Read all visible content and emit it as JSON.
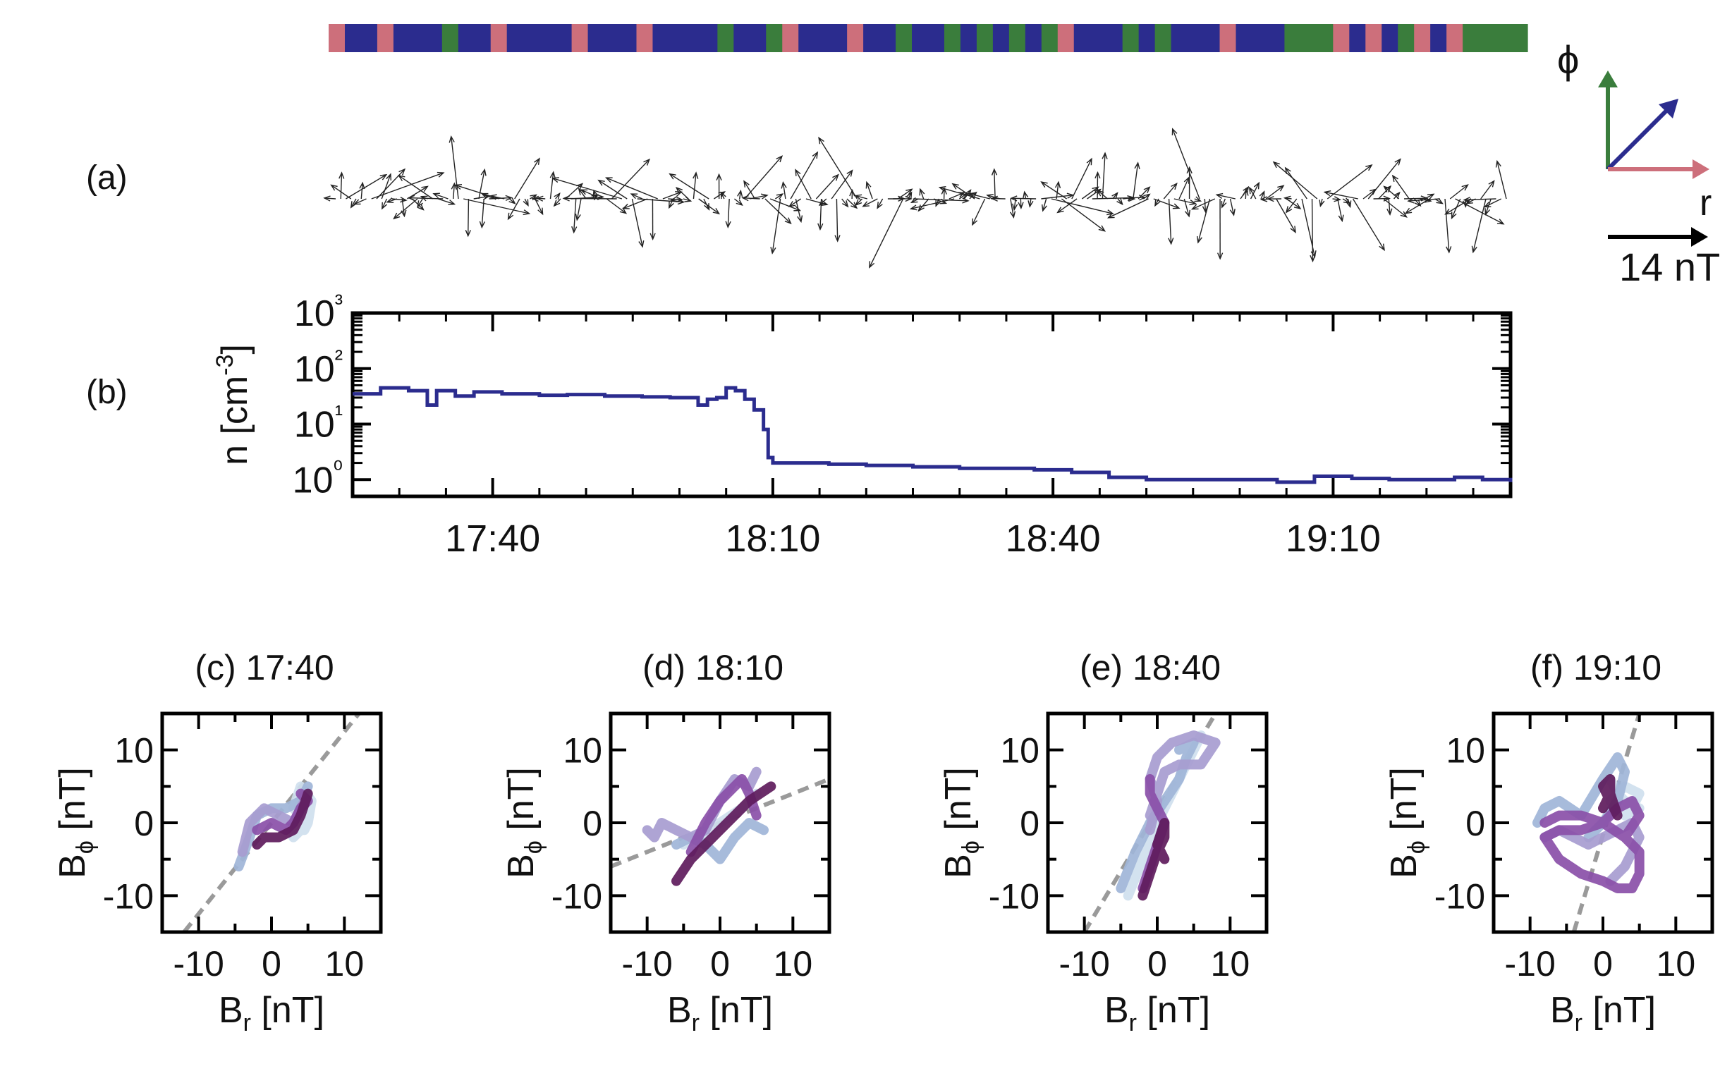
{
  "colors": {
    "pink": "#cd6f7b",
    "blue": "#2b2c8e",
    "green": "#3a7d3c",
    "line": "#2b2c8e",
    "dash": "#9a9a9a",
    "purple_dark": "#5e1b5c",
    "purple_mid": "#8a4fa8",
    "purple_light": "#a79cd0",
    "blue_light": "#9fb5d8",
    "blue_pale": "#cfe0ee"
  },
  "legend": {
    "phi_label": "ϕ",
    "r_label": "r",
    "scale_label": "14 nT"
  },
  "chart_data": [
    {
      "id": "a",
      "type": "other",
      "panel_label": "(a)",
      "color_bar_sequence": [
        "pink",
        "blue",
        "pink",
        "blue",
        "green",
        "blue",
        "pink",
        "blue",
        "pink",
        "blue",
        "pink",
        "blue",
        "green",
        "blue",
        "green",
        "pink",
        "blue",
        "pink",
        "blue",
        "green",
        "blue",
        "green",
        "blue",
        "green",
        "blue",
        "green",
        "blue",
        "green",
        "pink",
        "blue",
        "green",
        "blue",
        "green",
        "blue",
        "pink",
        "blue",
        "green",
        "pink",
        "blue",
        "pink",
        "blue",
        "green",
        "pink",
        "blue",
        "pink",
        "green"
      ]
    },
    {
      "id": "b",
      "type": "line",
      "panel_label": "(b)",
      "ylabel": "n [cm⁻³]",
      "yscale": "log",
      "ylim": [
        0.5,
        1000
      ],
      "xlim_minutes": [
        1045,
        1169
      ],
      "x_ticks": [
        1060,
        1090,
        1120,
        1150
      ],
      "x_tick_labels": [
        "17:40",
        "18:10",
        "18:40",
        "19:10"
      ],
      "y_ticks": [
        1,
        10,
        100,
        1000
      ],
      "y_tick_labels": [
        "10⁰",
        "10¹",
        "10²",
        "10³"
      ],
      "series": [
        {
          "x": [
            1045,
            1048,
            1051,
            1053,
            1054,
            1056,
            1058,
            1061,
            1065,
            1068,
            1072,
            1076,
            1079,
            1082,
            1083,
            1084,
            1085,
            1086,
            1087,
            1088,
            1089,
            1089.5,
            1090,
            1092,
            1096,
            1100,
            1105,
            1110,
            1114,
            1118,
            1122,
            1126,
            1130,
            1134,
            1138,
            1141,
            1144,
            1148,
            1152,
            1156,
            1160,
            1163,
            1166,
            1169
          ],
          "y": [
            35,
            45,
            40,
            22,
            40,
            32,
            38,
            35,
            33,
            34,
            32,
            31,
            30,
            22,
            28,
            30,
            45,
            40,
            28,
            18,
            8,
            2.5,
            2.0,
            2.0,
            1.9,
            1.8,
            1.7,
            1.6,
            1.6,
            1.5,
            1.35,
            1.1,
            1.0,
            1.0,
            1.0,
            1.0,
            0.9,
            1.15,
            1.05,
            1.0,
            1.0,
            1.1,
            1.0,
            0.9
          ]
        }
      ]
    },
    {
      "id": "c",
      "type": "line",
      "title": "(c) 17:40",
      "xlabel": "B_r [nT]",
      "ylabel": "B_ϕ [nT]",
      "xlim": [
        -15,
        15
      ],
      "ylim": [
        -15,
        15
      ],
      "ticks": [
        -10,
        0,
        10
      ],
      "dashed_line": [
        [
          -12,
          -15
        ],
        [
          12,
          15
        ]
      ],
      "series": [
        {
          "color": "blue_pale",
          "x": [
            3,
            5,
            5.5,
            4,
            3,
            5,
            4.5
          ],
          "y": [
            -2,
            0,
            3,
            5,
            2,
            0,
            -1
          ]
        },
        {
          "color": "blue_light",
          "x": [
            -4.5,
            -3,
            -2,
            0,
            2,
            4,
            5
          ],
          "y": [
            -6,
            -2,
            1,
            2,
            2,
            3,
            5
          ]
        },
        {
          "color": "purple_light",
          "x": [
            -4,
            -3,
            -1,
            1,
            3,
            4.5
          ],
          "y": [
            -4,
            0,
            2,
            1,
            0,
            3
          ]
        },
        {
          "color": "purple_mid",
          "x": [
            -2,
            0,
            2,
            3,
            4,
            5,
            4
          ],
          "y": [
            -1,
            0,
            -1,
            0,
            2,
            3,
            4
          ]
        },
        {
          "color": "purple_dark",
          "x": [
            -2,
            -1,
            1,
            3,
            4,
            5
          ],
          "y": [
            -3,
            -2,
            -2,
            -1,
            1,
            4
          ]
        }
      ]
    },
    {
      "id": "d",
      "type": "line",
      "title": "(d) 18:10",
      "xlabel": "B_r [nT]",
      "ylabel": "B_ϕ [nT]",
      "xlim": [
        -15,
        15
      ],
      "ylim": [
        -15,
        15
      ],
      "ticks": [
        -10,
        0,
        10
      ],
      "dashed_line": [
        [
          -15,
          -6
        ],
        [
          15,
          6
        ]
      ],
      "series": [
        {
          "color": "blue_pale",
          "x": [
            -5,
            -3,
            0,
            3,
            5
          ],
          "y": [
            -3,
            -2,
            0,
            2,
            4
          ]
        },
        {
          "color": "blue_light",
          "x": [
            -6,
            -4,
            -2,
            0,
            2,
            4,
            6
          ],
          "y": [
            -3,
            -2,
            -3,
            -5,
            -2,
            0,
            -1
          ]
        },
        {
          "color": "purple_light",
          "x": [
            -10,
            -9,
            -8,
            -6,
            -4,
            -2,
            0,
            2,
            4,
            5
          ],
          "y": [
            -1,
            -2,
            0,
            -1,
            -2,
            -1,
            3,
            6,
            5,
            7
          ]
        },
        {
          "color": "purple_mid",
          "x": [
            -4,
            -2,
            0,
            2,
            3,
            4,
            5
          ],
          "y": [
            -4,
            0,
            3,
            5,
            6,
            4,
            1
          ]
        },
        {
          "color": "purple_dark",
          "x": [
            -6,
            -4,
            -2,
            0,
            2,
            4,
            7
          ],
          "y": [
            -8,
            -5,
            -3,
            -1,
            1,
            3,
            5
          ]
        }
      ]
    },
    {
      "id": "e",
      "type": "line",
      "title": "(e) 18:40",
      "xlabel": "B_r [nT]",
      "ylabel": "B_ϕ [nT]",
      "xlim": [
        -15,
        15
      ],
      "ylim": [
        -15,
        15
      ],
      "ticks": [
        -10,
        0,
        10
      ],
      "dashed_line": [
        [
          -10,
          -15
        ],
        [
          8,
          15
        ]
      ],
      "series": [
        {
          "color": "blue_pale",
          "x": [
            -4,
            -2,
            0,
            2,
            4,
            6,
            5
          ],
          "y": [
            -10,
            -5,
            0,
            4,
            8,
            12,
            10
          ]
        },
        {
          "color": "blue_light",
          "x": [
            -5,
            -3,
            -1,
            1,
            3,
            4,
            5,
            3
          ],
          "y": [
            -9,
            -4,
            0,
            3,
            6,
            9,
            11,
            10
          ]
        },
        {
          "color": "purple_light",
          "x": [
            -1,
            0,
            -1,
            0,
            2,
            5,
            8,
            6,
            3,
            1,
            0,
            -1
          ],
          "y": [
            -1,
            3,
            6,
            9,
            11,
            12,
            11,
            8,
            8,
            7,
            4,
            1
          ]
        },
        {
          "color": "purple_mid",
          "x": [
            -2,
            -1,
            0,
            1,
            0,
            -1,
            -1
          ],
          "y": [
            -9,
            -6,
            -3,
            0,
            2,
            4,
            6
          ]
        },
        {
          "color": "purple_dark",
          "x": [
            -2,
            -1,
            0,
            1,
            1,
            0,
            1
          ],
          "y": [
            -10,
            -7,
            -4,
            -2,
            0,
            -3,
            -5
          ]
        }
      ]
    },
    {
      "id": "f",
      "type": "line",
      "title": "(f) 19:10",
      "xlabel": "B_r [nT]",
      "ylabel": "B_ϕ [nT]",
      "xlim": [
        -15,
        15
      ],
      "ylim": [
        -15,
        15
      ],
      "ticks": [
        -10,
        0,
        10
      ],
      "dashed_line": [
        [
          -4,
          -15
        ],
        [
          5,
          15
        ]
      ],
      "series": [
        {
          "color": "blue_pale",
          "x": [
            1,
            2,
            4,
            5,
            3,
            1,
            3,
            5
          ],
          "y": [
            6,
            4,
            2,
            4,
            5,
            3,
            1,
            2
          ]
        },
        {
          "color": "blue_light",
          "x": [
            -9,
            -8,
            -6,
            -3,
            0,
            2,
            3,
            2,
            0,
            -2
          ],
          "y": [
            0,
            2,
            3,
            1,
            6,
            9,
            7,
            3,
            0,
            -2
          ]
        },
        {
          "color": "purple_light",
          "x": [
            -8,
            -6,
            -4,
            -2,
            0,
            2,
            4,
            5,
            3,
            1
          ],
          "y": [
            -2,
            -1,
            -2,
            -3,
            -2,
            -1,
            0,
            -2,
            -6,
            -8
          ]
        },
        {
          "color": "purple_mid",
          "x": [
            -8,
            -6,
            -3,
            0,
            3,
            5,
            5,
            4,
            2,
            0,
            -3,
            -6,
            -8,
            -6,
            -3,
            0,
            2,
            4,
            5,
            3
          ],
          "y": [
            0,
            1,
            1,
            0,
            -2,
            -4,
            -7,
            -9,
            -9,
            -8,
            -7,
            -5,
            -2,
            -1,
            -1,
            0,
            2,
            3,
            1,
            -2
          ]
        },
        {
          "color": "purple_dark",
          "x": [
            0,
            1,
            1,
            0,
            1,
            2,
            1
          ],
          "y": [
            2,
            4,
            6,
            5,
            3,
            1,
            4
          ]
        }
      ]
    }
  ]
}
